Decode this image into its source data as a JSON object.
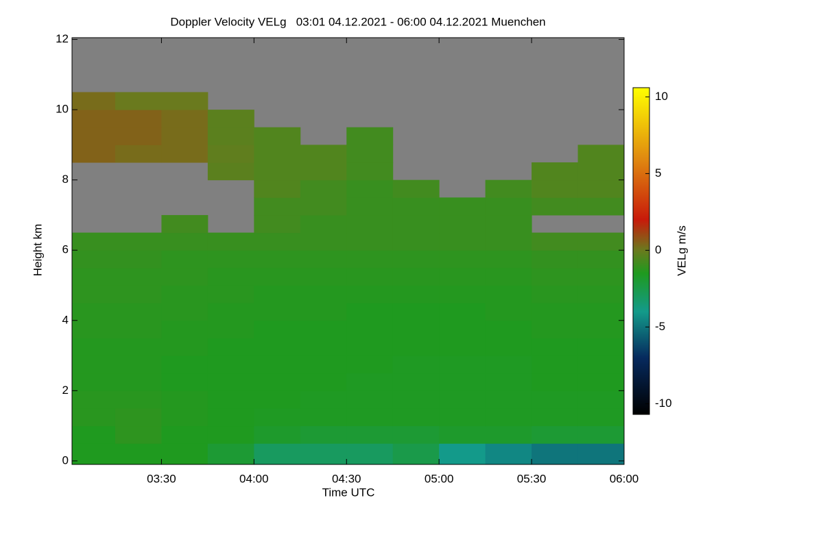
{
  "chart_data": {
    "type": "heatmap",
    "title": "Doppler Velocity VELg   03:01 04.12.2021 - 06:00 04.12.2021 Muenchen",
    "x_label": "Time UTC",
    "y_label": "Height km",
    "colorbar_label": "VELg m/s",
    "xlim": [
      181,
      360
    ],
    "xticks": [
      {
        "value": 210,
        "label": "03:30"
      },
      {
        "value": 240,
        "label": "04:00"
      },
      {
        "value": 270,
        "label": "04:30"
      },
      {
        "value": 300,
        "label": "05:00"
      },
      {
        "value": 330,
        "label": "05:30"
      },
      {
        "value": 360,
        "label": "06:00"
      }
    ],
    "ylim": [
      -0.1,
      12.05
    ],
    "yticks": [
      0,
      2,
      4,
      6,
      8,
      10,
      12
    ],
    "clim": [
      -10.7,
      10.6
    ],
    "cticks": [
      -10,
      -5,
      0,
      5,
      10
    ],
    "colorscale": [
      [
        -10.7,
        "#000000"
      ],
      [
        -7,
        "#062a5e"
      ],
      [
        -4,
        "#139a8a"
      ],
      [
        -1.5,
        "#1f9a1f"
      ],
      [
        0,
        "#6a7a1e"
      ],
      [
        2,
        "#c81a0a"
      ],
      [
        6,
        "#e08a10"
      ],
      [
        10.6,
        "#ffff00"
      ]
    ],
    "missing_color": "#808080",
    "xbins": [
      181,
      195,
      210,
      225,
      240,
      255,
      270,
      285,
      300,
      315,
      330,
      345,
      360
    ],
    "ybins": [
      0,
      0.5,
      1,
      1.5,
      2,
      2.5,
      3,
      3.5,
      4,
      4.5,
      5,
      5.5,
      6,
      6.5,
      7,
      7.5,
      8,
      8.5,
      9,
      9.5,
      10,
      10.5,
      11,
      11.5,
      12
    ],
    "z": [
      [
        -1.5,
        -1.5,
        -1.5,
        -2,
        -3,
        -3,
        -3,
        -2.5,
        -4,
        -4.5,
        -5,
        -5
      ],
      [
        -1.5,
        -1.2,
        -1.5,
        -1.5,
        -1.8,
        -2,
        -2,
        -2,
        -1.8,
        -1.8,
        -2,
        -2
      ],
      [
        -1.3,
        -1.2,
        -1.4,
        -1.5,
        -1.6,
        -1.6,
        -1.6,
        -1.6,
        -1.6,
        -1.6,
        -1.6,
        -1.6
      ],
      [
        -1.3,
        -1.3,
        -1.4,
        -1.5,
        -1.5,
        -1.6,
        -1.6,
        -1.6,
        -1.6,
        -1.6,
        -1.6,
        -1.6
      ],
      [
        -1.4,
        -1.4,
        -1.5,
        -1.5,
        -1.5,
        -1.5,
        -1.6,
        -1.6,
        -1.6,
        -1.6,
        -1.5,
        -1.5
      ],
      [
        -1.4,
        -1.4,
        -1.5,
        -1.5,
        -1.5,
        -1.5,
        -1.5,
        -1.6,
        -1.6,
        -1.6,
        -1.5,
        -1.5
      ],
      [
        -1.4,
        -1.4,
        -1.4,
        -1.5,
        -1.5,
        -1.5,
        -1.5,
        -1.5,
        -1.5,
        -1.5,
        -1.5,
        -1.5
      ],
      [
        -1.3,
        -1.3,
        -1.4,
        -1.4,
        -1.5,
        -1.5,
        -1.5,
        -1.5,
        -1.5,
        -1.5,
        -1.4,
        -1.4
      ],
      [
        -1.3,
        -1.3,
        -1.3,
        -1.4,
        -1.4,
        -1.4,
        -1.5,
        -1.5,
        -1.5,
        -1.4,
        -1.4,
        -1.4
      ],
      [
        -1.2,
        -1.2,
        -1.3,
        -1.3,
        -1.4,
        -1.4,
        -1.4,
        -1.4,
        -1.4,
        -1.4,
        -1.3,
        -1.3
      ],
      [
        -1.2,
        -1.2,
        -1.2,
        -1.3,
        -1.3,
        -1.3,
        -1.3,
        -1.3,
        -1.3,
        -1.3,
        -1.2,
        -1.2
      ],
      [
        -1.1,
        -1.1,
        -1.2,
        -1.2,
        -1.2,
        -1.2,
        -1.2,
        -1.2,
        -1.2,
        -1.2,
        -1.1,
        -1.1
      ],
      [
        -1,
        -1,
        -1,
        -1,
        -1,
        -1,
        -1,
        -1,
        -1,
        -1,
        -0.8,
        -0.8
      ],
      [
        null,
        null,
        -0.8,
        null,
        -0.8,
        -1,
        -1,
        -1,
        -1,
        -1,
        null,
        null
      ],
      [
        null,
        null,
        null,
        null,
        -0.8,
        -0.8,
        -1,
        -1,
        -1,
        -1,
        -0.8,
        -0.8
      ],
      [
        null,
        null,
        null,
        null,
        -0.5,
        -0.8,
        -1,
        -0.8,
        null,
        -0.8,
        -0.5,
        -0.5
      ],
      [
        null,
        null,
        null,
        -0.3,
        -0.5,
        -0.5,
        -0.8,
        null,
        null,
        null,
        -0.5,
        -0.5
      ],
      [
        0.5,
        0.3,
        0.3,
        -0.2,
        -0.5,
        -0.5,
        -0.8,
        null,
        null,
        null,
        null,
        -0.5
      ],
      [
        0.5,
        0.5,
        0.3,
        -0.3,
        -0.5,
        null,
        -0.8,
        null,
        null,
        null,
        null,
        null
      ],
      [
        0.5,
        0.5,
        0.3,
        -0.3,
        null,
        null,
        null,
        null,
        null,
        null,
        null,
        null
      ],
      [
        0.3,
        0,
        0,
        null,
        null,
        null,
        null,
        null,
        null,
        null,
        null,
        null
      ],
      [
        null,
        null,
        null,
        null,
        null,
        null,
        null,
        null,
        null,
        null,
        null,
        null
      ],
      [
        null,
        null,
        null,
        null,
        null,
        null,
        null,
        null,
        null,
        null,
        null,
        null
      ],
      [
        null,
        null,
        null,
        null,
        null,
        null,
        null,
        null,
        null,
        null,
        null,
        null
      ]
    ]
  }
}
